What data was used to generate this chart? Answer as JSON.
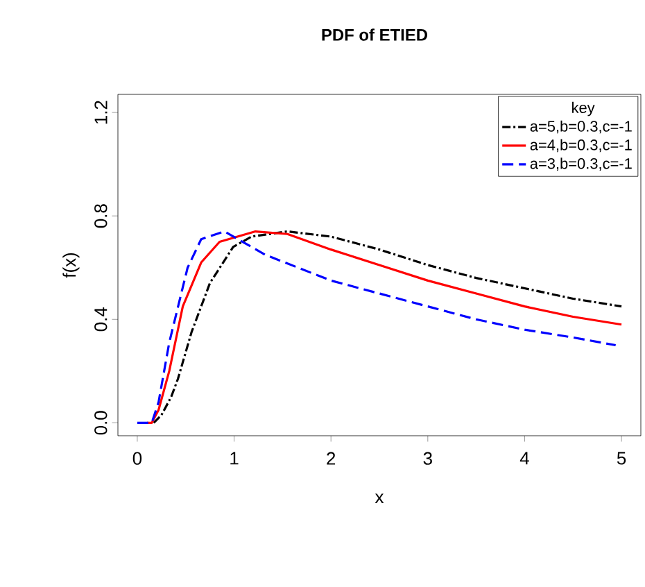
{
  "chart_data": {
    "type": "line",
    "title": "PDF of ETIED",
    "xlabel": "x",
    "ylabel": "f(x)",
    "legend_title": "key",
    "xlim": [
      -0.2,
      5.2
    ],
    "ylim": [
      -0.05,
      1.27
    ],
    "xticks": [
      0,
      1,
      2,
      3,
      4,
      5
    ],
    "yticks": [
      {
        "value": 0,
        "label": "0.0"
      },
      {
        "value": 0.4,
        "label": "0.4"
      },
      {
        "value": 0.8,
        "label": "0.8"
      },
      {
        "value": 1.2,
        "label": "1.2"
      }
    ],
    "grid": false,
    "legend": "top right",
    "marker": "none",
    "series": [
      {
        "name": "a=5,b=0.3,c=-1",
        "color": "#000000",
        "line_style": "dashdot",
        "x": [
          0.17,
          0.25,
          0.35,
          0.42,
          0.56,
          0.75,
          0.99,
          1.18,
          1.55,
          2,
          2.5,
          3,
          3.5,
          4,
          4.5,
          5
        ],
        "values": [
          0,
          0.03,
          0.1,
          0.17,
          0.35,
          0.54,
          0.68,
          0.72,
          0.74,
          0.72,
          0.67,
          0.61,
          0.56,
          0.52,
          0.48,
          0.45
        ]
      },
      {
        "name": "a=4,b=0.3,c=-1",
        "color": "#ff0000",
        "line_style": "solid",
        "x": [
          0.1,
          0.15,
          0.22,
          0.33,
          0.47,
          0.66,
          0.85,
          1.22,
          1.55,
          2,
          2.5,
          3,
          3.5,
          4,
          4.5,
          5
        ],
        "values": [
          0,
          0,
          0.05,
          0.2,
          0.45,
          0.62,
          0.7,
          0.74,
          0.73,
          0.67,
          0.61,
          0.55,
          0.5,
          0.45,
          0.41,
          0.38
        ]
      },
      {
        "name": "a=3,b=0.3,c=-1",
        "color": "#0000ff",
        "line_style": "dashed",
        "x": [
          0.0,
          0.15,
          0.22,
          0.33,
          0.52,
          0.66,
          0.9,
          1.32,
          2,
          2.5,
          3,
          3.5,
          4,
          4.5,
          4.94
        ],
        "values": [
          0,
          0,
          0.08,
          0.31,
          0.6,
          0.71,
          0.74,
          0.65,
          0.55,
          0.5,
          0.45,
          0.4,
          0.36,
          0.33,
          0.3
        ]
      }
    ]
  }
}
